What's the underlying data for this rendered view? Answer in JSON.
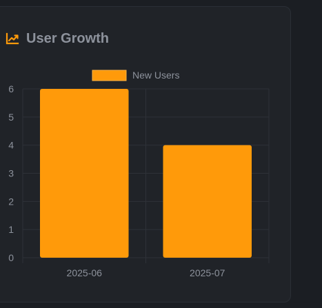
{
  "header": {
    "title": "User Growth",
    "icon": "trending-up-icon"
  },
  "colors": {
    "accent": "#ff9a0a",
    "card_bg": "#202328",
    "page_bg": "#1b1e23",
    "text_muted": "#8d929c",
    "grid": "#2e3238"
  },
  "chart_data": {
    "type": "bar",
    "categories": [
      "2025-06",
      "2025-07"
    ],
    "series": [
      {
        "name": "New Users",
        "values": [
          6,
          4
        ]
      }
    ],
    "title": "",
    "xlabel": "",
    "ylabel": "",
    "ylim": [
      0,
      6
    ],
    "yticks": [
      "0",
      "1",
      "2",
      "3",
      "4",
      "5",
      "6"
    ],
    "grid": true,
    "legend": "top-center"
  }
}
